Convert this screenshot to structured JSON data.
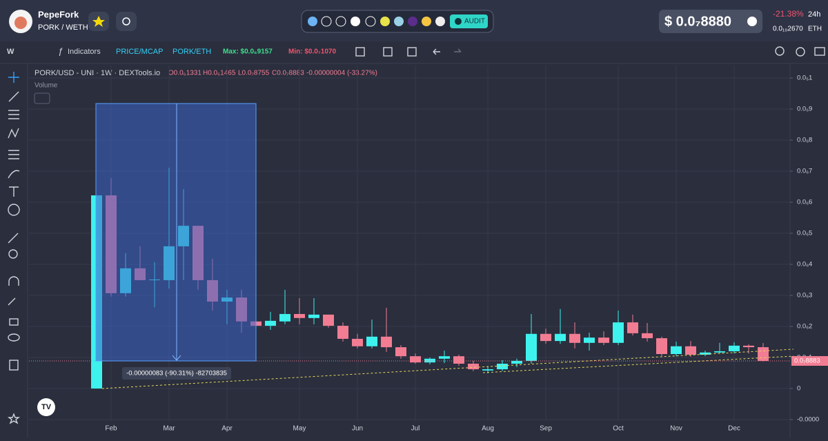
{
  "header": {
    "name": "PepeFork",
    "pair": "PORK / WETH",
    "audit": "AUDIT",
    "price": "$ 0.0₇8880",
    "change": "-21.38%",
    "period": "24h",
    "eth_price": "0.0₁₀2670",
    "eth_unit": "ETH"
  },
  "toolbar": {
    "interval": "W",
    "indicators": "Indicators",
    "price_mcap": "PRICE/MCAP",
    "pair": "PORK/ETH",
    "max": "Max: $0.0₆9157",
    "min": "Min: $0.0₇1070"
  },
  "chart_data": {
    "type": "candlestick",
    "title": "PORK/USD - UNI · 1W · DEXTools.io",
    "ohlc": [
      "O0.0₆1331",
      "H0.0₆1465",
      "L0.0₇8755",
      "C0.0₇8883"
    ],
    "change": "-0.00000004 (-33.27%)",
    "volume_label": "Volume",
    "measure_label": "-0.00000083 (-90.31%) -82703835",
    "last_price": {
      "value": 8.883e-08,
      "label": "0.0₇8883"
    },
    "up_color": "#3ef2ee",
    "down_color": "#f27d93",
    "categories": [
      null,
      "Feb",
      null,
      null,
      null,
      "Mar",
      null,
      null,
      null,
      "Apr",
      null,
      null,
      null,
      null,
      "May",
      null,
      null,
      null,
      "Jun",
      null,
      null,
      null,
      "Jul",
      null,
      null,
      null,
      null,
      "Aug",
      null,
      null,
      null,
      "Sep",
      null,
      null,
      null,
      null,
      "Oct",
      null,
      null,
      null,
      "Nov",
      null,
      null,
      null,
      "Dec",
      null,
      null
    ],
    "open": [
      0,
      6.22e-07,
      3.07e-07,
      3.87e-07,
      3.49e-07,
      3.49e-07,
      4.58e-07,
      5.24e-07,
      3.49e-07,
      2.8e-07,
      2.93e-07,
      2.16e-07,
      2.02e-07,
      2.16e-07,
      2.4e-07,
      2.27e-07,
      2.38e-07,
      2.02e-07,
      1.6e-07,
      1.36e-07,
      1.67e-07,
      1.33e-07,
      1.04e-07,
      8.4e-08,
      9.6e-08,
      1.04e-07,
      8e-08,
      5.8e-08,
      6.2e-08,
      8e-08,
      8.9e-08,
      1.76e-07,
      1.53e-07,
      1.76e-07,
      1.47e-07,
      1.64e-07,
      1.47e-07,
      2.13e-07,
      1.78e-07,
      1.62e-07,
      1.11e-07,
      1.36e-07,
      1.09e-07,
      1.16e-07,
      1.2e-07,
      1.38e-07,
      1.331e-07
    ],
    "high": [
      6.22e-07,
      6.78e-07,
      4.36e-07,
      4.58e-07,
      4.07e-07,
      7.11e-07,
      6.42e-07,
      5.24e-07,
      4.18e-07,
      3.18e-07,
      3.18e-07,
      2.33e-07,
      2.47e-07,
      3.18e-07,
      2.91e-07,
      2.91e-07,
      2.38e-07,
      2.13e-07,
      1.76e-07,
      2.22e-07,
      2.6e-07,
      1.4e-07,
      1.13e-07,
      1e-07,
      1.22e-07,
      1.09e-07,
      8.9e-08,
      7.1e-08,
      9.1e-08,
      9.6e-08,
      2.4e-07,
      1.93e-07,
      2.56e-07,
      2.13e-07,
      1.8e-07,
      1.84e-07,
      2.51e-07,
      2.38e-07,
      2.11e-07,
      1.67e-07,
      1.51e-07,
      1.53e-07,
      1.22e-07,
      1.47e-07,
      1.49e-07,
      1.42e-07,
      1.465e-07
    ],
    "low": [
      0,
      2.96e-07,
      2.96e-07,
      3.49e-07,
      2.62e-07,
      3.22e-07,
      3.49e-07,
      3.18e-07,
      2.51e-07,
      2.07e-07,
      1.8e-07,
      1.51e-07,
      1.89e-07,
      2.07e-07,
      2.07e-07,
      2.07e-07,
      1.96e-07,
      1.51e-07,
      1.29e-07,
      1.29e-07,
      1.18e-07,
      9.6e-08,
      8e-08,
      7.8e-08,
      8.2e-08,
      7.3e-08,
      5.6e-08,
      4.9e-08,
      5.6e-08,
      6.9e-08,
      8e-08,
      1.44e-07,
      1.44e-07,
      1.29e-07,
      1.22e-07,
      1.4e-07,
      1.4e-07,
      1.71e-07,
      1.51e-07,
      1.04e-07,
      1.04e-07,
      1.02e-07,
      1.04e-07,
      1.13e-07,
      1.13e-07,
      1.13e-07,
      8.755e-08
    ],
    "close": [
      6.22e-07,
      3.07e-07,
      3.87e-07,
      3.49e-07,
      3.51e-07,
      4.58e-07,
      5.24e-07,
      3.49e-07,
      2.8e-07,
      2.93e-07,
      2.16e-07,
      2.02e-07,
      2.18e-07,
      2.4e-07,
      2.27e-07,
      2.38e-07,
      2.02e-07,
      1.6e-07,
      1.36e-07,
      1.67e-07,
      1.33e-07,
      1.04e-07,
      8.4e-08,
      9.6e-08,
      1.04e-07,
      8e-08,
      6.2e-08,
      6.2e-08,
      8e-08,
      8.9e-08,
      1.76e-07,
      1.53e-07,
      1.76e-07,
      1.47e-07,
      1.64e-07,
      1.47e-07,
      2.13e-07,
      1.78e-07,
      1.62e-07,
      1.11e-07,
      1.36e-07,
      1.09e-07,
      1.16e-07,
      1.2e-07,
      1.38e-07,
      1.331e-07,
      8.883e-08
    ],
    "ylim": [
      -1.49e-07,
      1.04e-06
    ],
    "yticks": [
      {
        "value": 1e-06,
        "label": "0.0₅1"
      },
      {
        "value": 9e-07,
        "label": "0.0₆9"
      },
      {
        "value": 8e-07,
        "label": "0.0₆8"
      },
      {
        "value": 7e-07,
        "label": "0.0₆7"
      },
      {
        "value": 6e-07,
        "label": "0.0₆6"
      },
      {
        "value": 5e-07,
        "label": "0.0₆5"
      },
      {
        "value": 4e-07,
        "label": "0.0₆4"
      },
      {
        "value": 3e-07,
        "label": "0.0₆3"
      },
      {
        "value": 2e-07,
        "label": "0.0₆2"
      },
      {
        "value": 1e-07,
        "label": "0.0₆1"
      },
      0,
      {
        "value": -1e-07,
        "label": "-0.0000"
      }
    ],
    "grid": true
  }
}
